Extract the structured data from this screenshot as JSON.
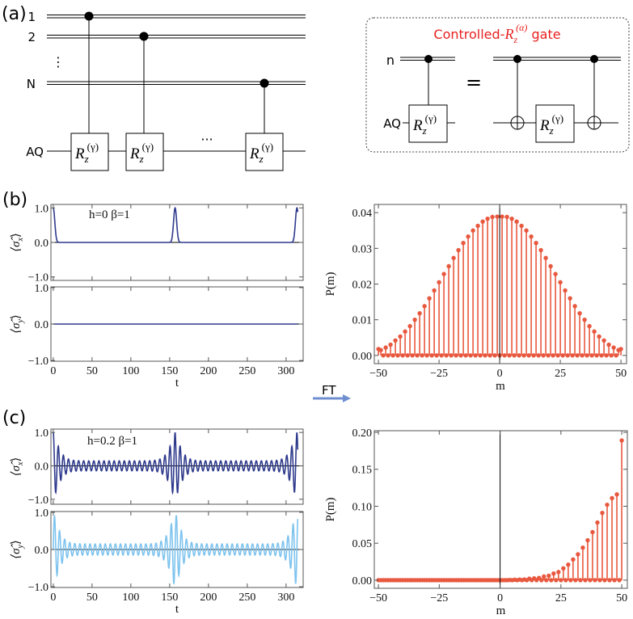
{
  "panel_labels": {
    "a": "(a)",
    "b": "(b)",
    "c": "(c)"
  },
  "circuit": {
    "qubit_labels": [
      "1",
      "2",
      "⋮",
      "N"
    ],
    "ancilla_label": "AQ",
    "gate": {
      "base": "R",
      "sub": "z",
      "sup": "(γ)"
    },
    "ellipsis": "···"
  },
  "inset": {
    "title_prefix": "Controlled-",
    "title_base": "R",
    "title_sub": "z",
    "title_sup": "(α)",
    "title_suffix": " gate",
    "title_color": "#e8201f",
    "control_label": "n",
    "ancilla_label": "AQ",
    "equals": "=",
    "gate": {
      "base": "R",
      "sub": "z",
      "sup": "(γ)"
    }
  },
  "ft": {
    "label": "FT",
    "arrow_color": "#6f8fd0"
  },
  "chart_data": [
    {
      "type": "line",
      "panel": "b",
      "annotation": "h=0 β=1",
      "xlabel": "t",
      "xlim": [
        -3,
        322
      ],
      "xticks": [
        0,
        50,
        100,
        150,
        200,
        250,
        300
      ],
      "xtick_labels": [
        "0",
        "50",
        "100",
        "150",
        "200",
        "250",
        "300"
      ],
      "subplots": [
        {
          "ylabel": [
            "⟨σ̂",
            "x",
            "⟩"
          ],
          "ylim": [
            -1.1,
            1.1
          ],
          "yticks": [
            -1,
            0,
            1
          ],
          "ytick_labels": [
            "−1.0",
            "0.0",
            "1.0"
          ],
          "series": {
            "color": "#2e3a8c",
            "model": "revival_peaks",
            "revival_times": [
              0,
              157,
              314
            ],
            "peak_value": 1.0,
            "baseline": 0.0
          }
        },
        {
          "ylabel": [
            "⟨σ̂",
            "y",
            "⟩"
          ],
          "ylim": [
            -1.02,
            1.02
          ],
          "yticks": [
            -1,
            0,
            1
          ],
          "ytick_labels": [
            "−1.0",
            "0.0",
            "1.0"
          ],
          "series": {
            "color": "#2e3a8c",
            "model": "constant",
            "value": 0.0
          }
        }
      ]
    },
    {
      "type": "scatter",
      "panel": "b",
      "style": "stem",
      "xlabel": "m",
      "ylabel": "P(m)",
      "xlim": [
        -51.7,
        52.3
      ],
      "ylim": [
        -0.0023,
        0.0423
      ],
      "xticks": [
        -50,
        -25,
        0,
        25,
        50
      ],
      "xtick_labels": [
        "−50",
        "−25",
        "0",
        "25",
        "50"
      ],
      "yticks": [
        0,
        0.01,
        0.02,
        0.03,
        0.04
      ],
      "ytick_labels": [
        "0.00",
        "0.01",
        "0.02",
        "0.03",
        "0.04"
      ],
      "color": "#e8583f",
      "m": [
        -50,
        -49,
        -48,
        -47,
        -46,
        -45,
        -44,
        -43,
        -42,
        -41,
        -40,
        -39,
        -38,
        -37,
        -36,
        -35,
        -34,
        -33,
        -32,
        -31,
        -30,
        -29,
        -28,
        -27,
        -26,
        -25,
        -24,
        -23,
        -22,
        -21,
        -20,
        -19,
        -18,
        -17,
        -16,
        -15,
        -14,
        -13,
        -12,
        -11,
        -10,
        -9,
        -8,
        -7,
        -6,
        -5,
        -4,
        -3,
        -2,
        -1,
        0,
        1,
        2,
        3,
        4,
        5,
        6,
        7,
        8,
        9,
        10,
        11,
        12,
        13,
        14,
        15,
        16,
        17,
        18,
        19,
        20,
        21,
        22,
        23,
        24,
        25,
        26,
        27,
        28,
        29,
        30,
        31,
        32,
        33,
        34,
        35,
        36,
        37,
        38,
        39,
        40,
        41,
        42,
        43,
        44,
        45,
        46,
        47,
        48,
        49,
        50
      ],
      "P": [
        0.0018,
        0.0015,
        0,
        0.0022,
        0,
        0.003,
        0,
        0.0042,
        0,
        0.0053,
        0,
        0.0067,
        0,
        0.0082,
        0,
        0.01,
        0,
        0.0118,
        0,
        0.0138,
        0,
        0.016,
        0,
        0.0182,
        0,
        0.0205,
        0,
        0.0228,
        0,
        0.025,
        0,
        0.0273,
        0,
        0.0295,
        0,
        0.0315,
        0,
        0.0333,
        0,
        0.035,
        0,
        0.0363,
        0,
        0.0375,
        0,
        0.0383,
        0,
        0.0388,
        0,
        0.0389,
        0,
        0.0389,
        0,
        0.0388,
        0,
        0.0383,
        0,
        0.0375,
        0,
        0.0363,
        0,
        0.035,
        0,
        0.0333,
        0,
        0.0315,
        0,
        0.0295,
        0,
        0.0273,
        0,
        0.025,
        0,
        0.0228,
        0,
        0.0205,
        0,
        0.0182,
        0,
        0.016,
        0,
        0.0138,
        0,
        0.0118,
        0,
        0.01,
        0,
        0.0082,
        0,
        0.0067,
        0,
        0.0053,
        0,
        0.0042,
        0,
        0.003,
        0,
        0.0022,
        0,
        0.0015,
        0.0018
      ]
    },
    {
      "type": "line",
      "panel": "c",
      "annotation": "h=0.2 β=1",
      "xlabel": "t",
      "xlim": [
        -3,
        322
      ],
      "xticks": [
        0,
        50,
        100,
        150,
        200,
        250,
        300
      ],
      "xtick_labels": [
        "0",
        "50",
        "100",
        "150",
        "200",
        "250",
        "300"
      ],
      "subplots": [
        {
          "ylabel": [
            "⟨σ̂",
            "x",
            "⟩"
          ],
          "ylim": [
            -1.15,
            1.1
          ],
          "yticks": [
            -1,
            0,
            1
          ],
          "ytick_labels": [
            "−1.0",
            "0.0",
            "1.0"
          ],
          "series": {
            "color": "#2e3a8c",
            "model": "oscillation",
            "phase": "cos",
            "period": 6.54,
            "revival_times": [
              0,
              157,
              314
            ],
            "revival_amplitude": 1.0,
            "background_amplitude": 0.15
          }
        },
        {
          "ylabel": [
            "⟨σ̂",
            "y",
            "⟩"
          ],
          "ylim": [
            -1.02,
            1.02
          ],
          "yticks": [
            -1,
            0,
            1
          ],
          "ytick_labels": [
            "−1.0",
            "0.0",
            "1.0"
          ],
          "series": {
            "color": "#7ec3ee",
            "model": "oscillation",
            "phase": "sin",
            "period": 6.54,
            "revival_times": [
              0,
              157,
              314
            ],
            "revival_amplitude": 1.0,
            "background_amplitude": 0.15
          }
        }
      ]
    },
    {
      "type": "scatter",
      "panel": "c",
      "style": "stem",
      "xlabel": "m",
      "ylabel": "P(m)",
      "xlim": [
        -51.7,
        52.3
      ],
      "ylim": [
        -0.011,
        0.2022
      ],
      "xticks": [
        -50,
        -25,
        0,
        25,
        50
      ],
      "xtick_labels": [
        "−50",
        "−25",
        "0",
        "25",
        "50"
      ],
      "yticks": [
        0,
        0.05,
        0.1,
        0.15,
        0.2
      ],
      "ytick_labels": [
        "0.00",
        "0.05",
        "0.10",
        "0.15",
        "0.20"
      ],
      "color": "#e8583f",
      "m": [
        -50,
        -49,
        -48,
        -47,
        -46,
        -45,
        -44,
        -43,
        -42,
        -41,
        -40,
        -39,
        -38,
        -37,
        -36,
        -35,
        -34,
        -33,
        -32,
        -31,
        -30,
        -29,
        -28,
        -27,
        -26,
        -25,
        -24,
        -23,
        -22,
        -21,
        -20,
        -19,
        -18,
        -17,
        -16,
        -15,
        -14,
        -13,
        -12,
        -11,
        -10,
        -9,
        -8,
        -7,
        -6,
        -5,
        -4,
        -3,
        -2,
        -1,
        0,
        1,
        2,
        3,
        4,
        5,
        6,
        7,
        8,
        9,
        10,
        11,
        12,
        13,
        14,
        15,
        16,
        17,
        18,
        19,
        20,
        21,
        22,
        23,
        24,
        25,
        26,
        27,
        28,
        29,
        30,
        31,
        32,
        33,
        34,
        35,
        36,
        37,
        38,
        39,
        40,
        41,
        42,
        43,
        44,
        45,
        46,
        47,
        48,
        49,
        50
      ],
      "P": [
        0,
        0,
        0,
        0,
        0,
        0,
        0,
        0,
        0,
        0,
        0,
        0,
        0,
        0,
        0,
        0,
        0,
        0,
        0,
        0,
        0,
        0,
        0,
        0,
        0,
        0,
        0,
        0,
        0,
        0,
        0,
        0,
        0,
        0,
        0,
        0,
        0,
        0,
        0,
        0,
        0,
        0,
        0,
        0,
        0,
        0,
        0,
        0,
        0,
        0,
        0,
        0,
        0,
        0,
        0.0003,
        0,
        0.0005,
        0,
        0.0008,
        0,
        0.001,
        0,
        0.002,
        0,
        0.0025,
        0,
        0.003,
        0,
        0.005,
        0,
        0.006,
        0,
        0.009,
        0,
        0.011,
        0,
        0.016,
        0,
        0.021,
        0,
        0.028,
        0,
        0.035,
        0,
        0.044,
        0,
        0.054,
        0,
        0.065,
        0,
        0.078,
        0,
        0.091,
        0,
        0.102,
        0,
        0.111,
        0,
        0.116,
        0,
        0.189
      ]
    }
  ]
}
